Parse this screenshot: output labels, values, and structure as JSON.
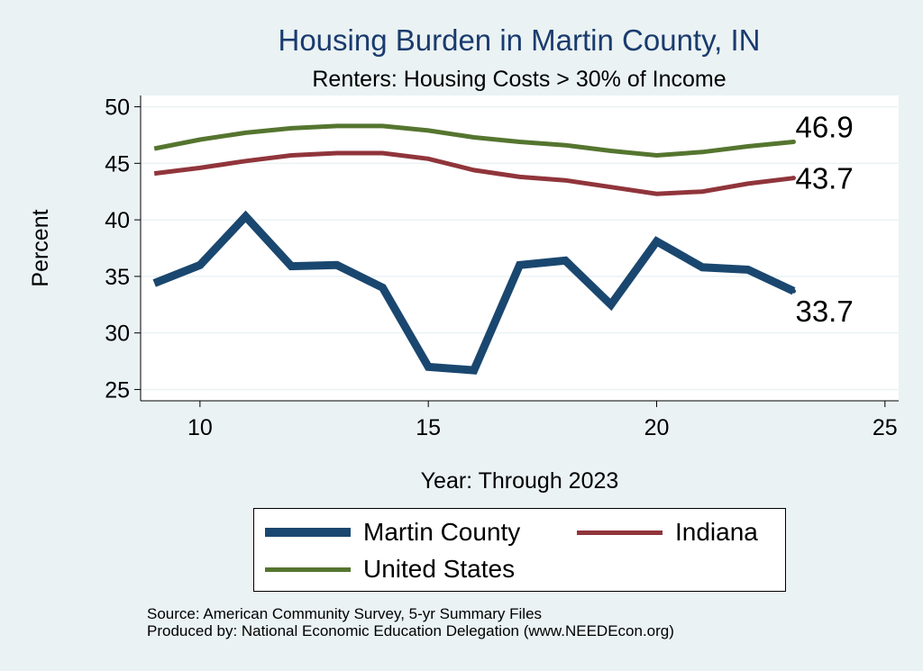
{
  "chart_data": {
    "type": "line",
    "title": "Housing Burden in Martin County, IN",
    "subtitle": "Renters: Housing Costs > 30% of Income",
    "xlabel": "Year: Through 2023",
    "ylabel": "Percent",
    "xlim": [
      8.7,
      25.3
    ],
    "ylim": [
      24,
      51
    ],
    "xticks": [
      10,
      15,
      20,
      25
    ],
    "yticks": [
      25,
      30,
      35,
      40,
      45,
      50
    ],
    "x": [
      9,
      10,
      11,
      12,
      13,
      14,
      15,
      16,
      17,
      18,
      19,
      20,
      21,
      22,
      23
    ],
    "series": [
      {
        "name": "Martin County",
        "color": "#1a476f",
        "values": [
          34.4,
          36.0,
          40.3,
          35.9,
          36.0,
          34.0,
          27.0,
          26.7,
          36.0,
          36.4,
          32.5,
          38.1,
          35.8,
          35.6,
          33.7
        ],
        "end_label": "33.7"
      },
      {
        "name": "Indiana",
        "color": "#90353b",
        "values": [
          44.1,
          44.6,
          45.2,
          45.7,
          45.9,
          45.9,
          45.4,
          44.4,
          43.8,
          43.5,
          42.9,
          42.3,
          42.5,
          43.2,
          43.7
        ],
        "end_label": "43.7"
      },
      {
        "name": "United States",
        "color": "#55752f",
        "values": [
          46.3,
          47.1,
          47.7,
          48.1,
          48.3,
          48.3,
          47.9,
          47.3,
          46.9,
          46.6,
          46.1,
          45.7,
          46.0,
          46.5,
          46.9
        ],
        "end_label": "46.9"
      }
    ],
    "legend": [
      "Martin County",
      "Indiana",
      "United States"
    ]
  },
  "source_lines": [
    "Source: American Community Survey, 5-yr Summary Files",
    "Produced by: National Economic Education Delegation (www.NEEDEcon.org)"
  ],
  "colors": {
    "background": "#eaf2f3",
    "title": "#1a3b6e",
    "grid": "#eaf2f3"
  }
}
